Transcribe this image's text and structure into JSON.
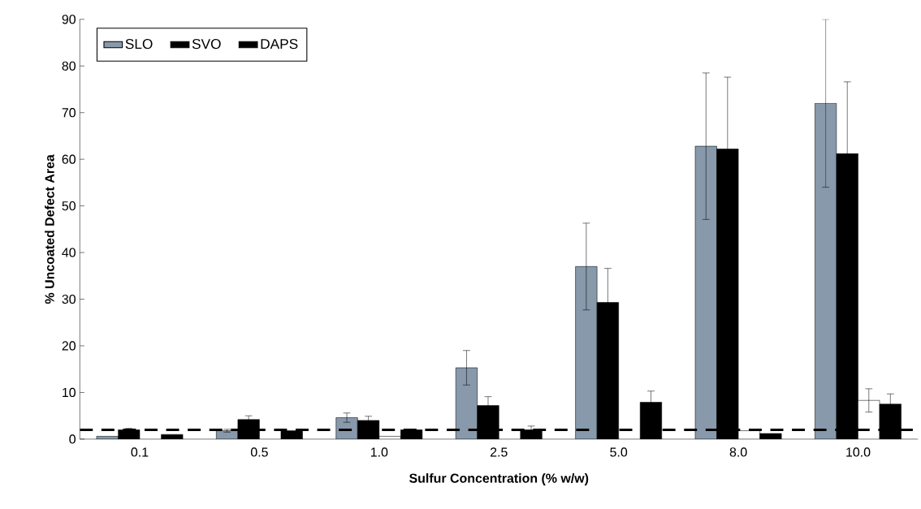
{
  "chart_data": {
    "type": "bar",
    "xlabel": "Sulfur Concentration (% w/w)",
    "ylabel": "% Uncoated Defect Area",
    "categories": [
      "0.1",
      "0.5",
      "1.0",
      "2.5",
      "5.0",
      "8.0",
      "10.0"
    ],
    "series": [
      {
        "name": "SLO",
        "color": "#8799aa",
        "values": [
          0.6,
          1.8,
          4.6,
          15.3,
          37,
          62.8,
          72
        ],
        "errors": [
          null,
          0.3,
          1.0,
          3.7,
          9.3,
          15.7,
          18
        ]
      },
      {
        "name": "SVO",
        "color": "#000000",
        "values": [
          2,
          4.2,
          4.0,
          7.2,
          29.3,
          62.2,
          61.2
        ],
        "errors": [
          0.3,
          0.8,
          0.9,
          1.9,
          7.3,
          15.4,
          15.4
        ]
      },
      {
        "color": "#ffffff",
        "values": [
          null,
          null,
          0.6,
          null,
          null,
          1.8,
          8.3
        ],
        "errors": [
          null,
          null,
          null,
          null,
          null,
          null,
          2.5
        ]
      },
      {
        "name": "DAPS",
        "color": "#000000",
        "values": [
          1,
          1.8,
          2.0,
          2.0,
          7.9,
          1.2,
          7.5
        ],
        "errors": [
          null,
          null,
          null,
          0.8,
          2.4,
          null,
          2.2
        ]
      }
    ],
    "ylim": [
      0,
      90
    ],
    "yticks": [
      0,
      10,
      20,
      30,
      40,
      50,
      60,
      70,
      80,
      90
    ],
    "ref_lines": [
      {
        "axis": "y",
        "value": 2,
        "color": "#000000",
        "line_style": "dashed"
      }
    ],
    "legend": "top left",
    "grid": false
  }
}
